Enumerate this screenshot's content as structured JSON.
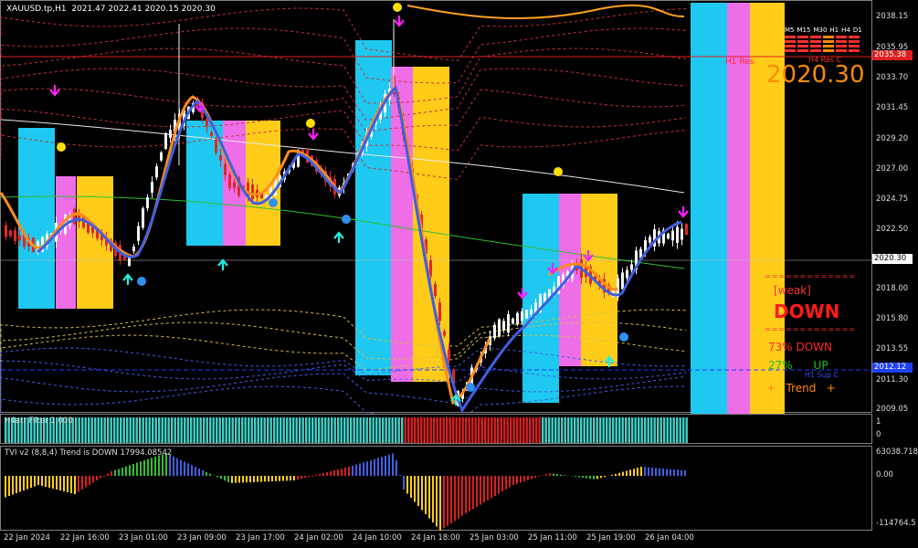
{
  "chart_header": {
    "symbol": "XAUUSD.tp,H1",
    "ohlc": "2021.47 2022.41 2020.15 2020.30"
  },
  "price_axis": {
    "ticks": [
      "2038.15",
      "2035.95",
      "2033.70",
      "2031.45",
      "2029.20",
      "2027.00",
      "2024.75",
      "2022.50",
      "2018.00",
      "2015.80",
      "2013.55",
      "2011.30",
      "2009.05"
    ],
    "red_tag": "2035.38",
    "bid_tag": "2020.30",
    "blue_tag": "2012.12"
  },
  "time_axis": [
    "22 Jan 2024",
    "22 Jan 16:00",
    "23 Jan 01:00",
    "23 Jan 09:00",
    "23 Jan 17:00",
    "24 Jan 02:00",
    "24 Jan 10:00",
    "24 Jan 18:00",
    "25 Jan 03:00",
    "25 Jan 11:00",
    "25 Jan 19:00",
    "26 Jan 04:00"
  ],
  "overlay": {
    "price_big": "2020.30",
    "h1_res": "H1 Res",
    "h4_res": "H4 Res C",
    "h1_sup": "H1 Sup C",
    "weak": "[weak]",
    "direction": "DOWN",
    "down_line": "73% DOWN",
    "up_line": "27%      UP",
    "trend_line": "+   Trend   +",
    "mtf_headers": [
      "M5",
      "M15",
      "M30",
      "H1",
      "H4",
      "D1"
    ]
  },
  "indicator1": {
    "title": "H4atr Filter 1.000",
    "axis_top": "1",
    "axis_bottom": "0"
  },
  "indicator2": {
    "title": "TVI v2 (8,8,4) Trend is DOWN 17994.08542",
    "axis_top": "63038.718",
    "axis_mid": "0.00",
    "axis_bottom": "-114764.5"
  },
  "colors": {
    "cyan": "#1ec8f0",
    "magenta": "#ee6ee8",
    "yellow": "#ffcc1a",
    "red_line": "#e02020",
    "blue_line": "#2040ff"
  }
}
